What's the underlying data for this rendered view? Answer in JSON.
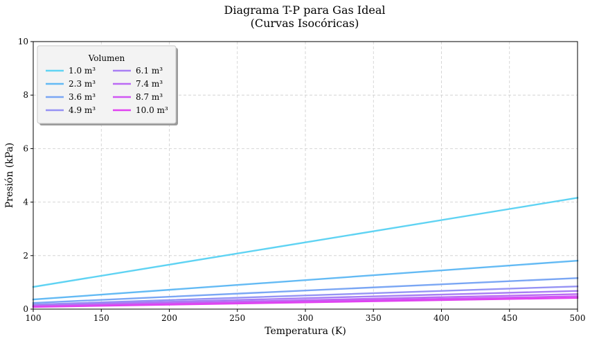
{
  "chart_data": {
    "type": "line",
    "title": "Diagrama T-P para Gas Ideal",
    "subtitle": "(Curvas Isocóricas)",
    "xlabel": "Temperatura (K)",
    "ylabel": "Presión (kPa)",
    "xlim": [
      100,
      500
    ],
    "ylim": [
      0,
      10
    ],
    "xticks": [
      "100",
      "150",
      "200",
      "250",
      "300",
      "350",
      "400",
      "450",
      "500"
    ],
    "yticks": [
      "0",
      "2",
      "4",
      "6",
      "8",
      "10"
    ],
    "grid": true,
    "legend": {
      "title": "Volumen",
      "position": "top-left",
      "columns": 2
    },
    "x": [
      100,
      500
    ],
    "series": [
      {
        "name": "1.0 m³",
        "color": "#5fd3f3",
        "values": [
          0.83,
          4.16
        ]
      },
      {
        "name": "2.3 m³",
        "color": "#63baf4",
        "values": [
          0.36,
          1.81
        ]
      },
      {
        "name": "3.6 m³",
        "color": "#7aa6f4",
        "values": [
          0.23,
          1.16
        ]
      },
      {
        "name": "4.9 m³",
        "color": "#9592f4",
        "values": [
          0.17,
          0.85
        ]
      },
      {
        "name": "6.1 m³",
        "color": "#a87ef4",
        "values": [
          0.14,
          0.68
        ]
      },
      {
        "name": "7.4 m³",
        "color": "#bb6af4",
        "values": [
          0.11,
          0.56
        ]
      },
      {
        "name": "8.7 m³",
        "color": "#cf56f3",
        "values": [
          0.1,
          0.48
        ]
      },
      {
        "name": "10.0 m³",
        "color": "#e042f1",
        "values": [
          0.08,
          0.42
        ]
      }
    ]
  }
}
